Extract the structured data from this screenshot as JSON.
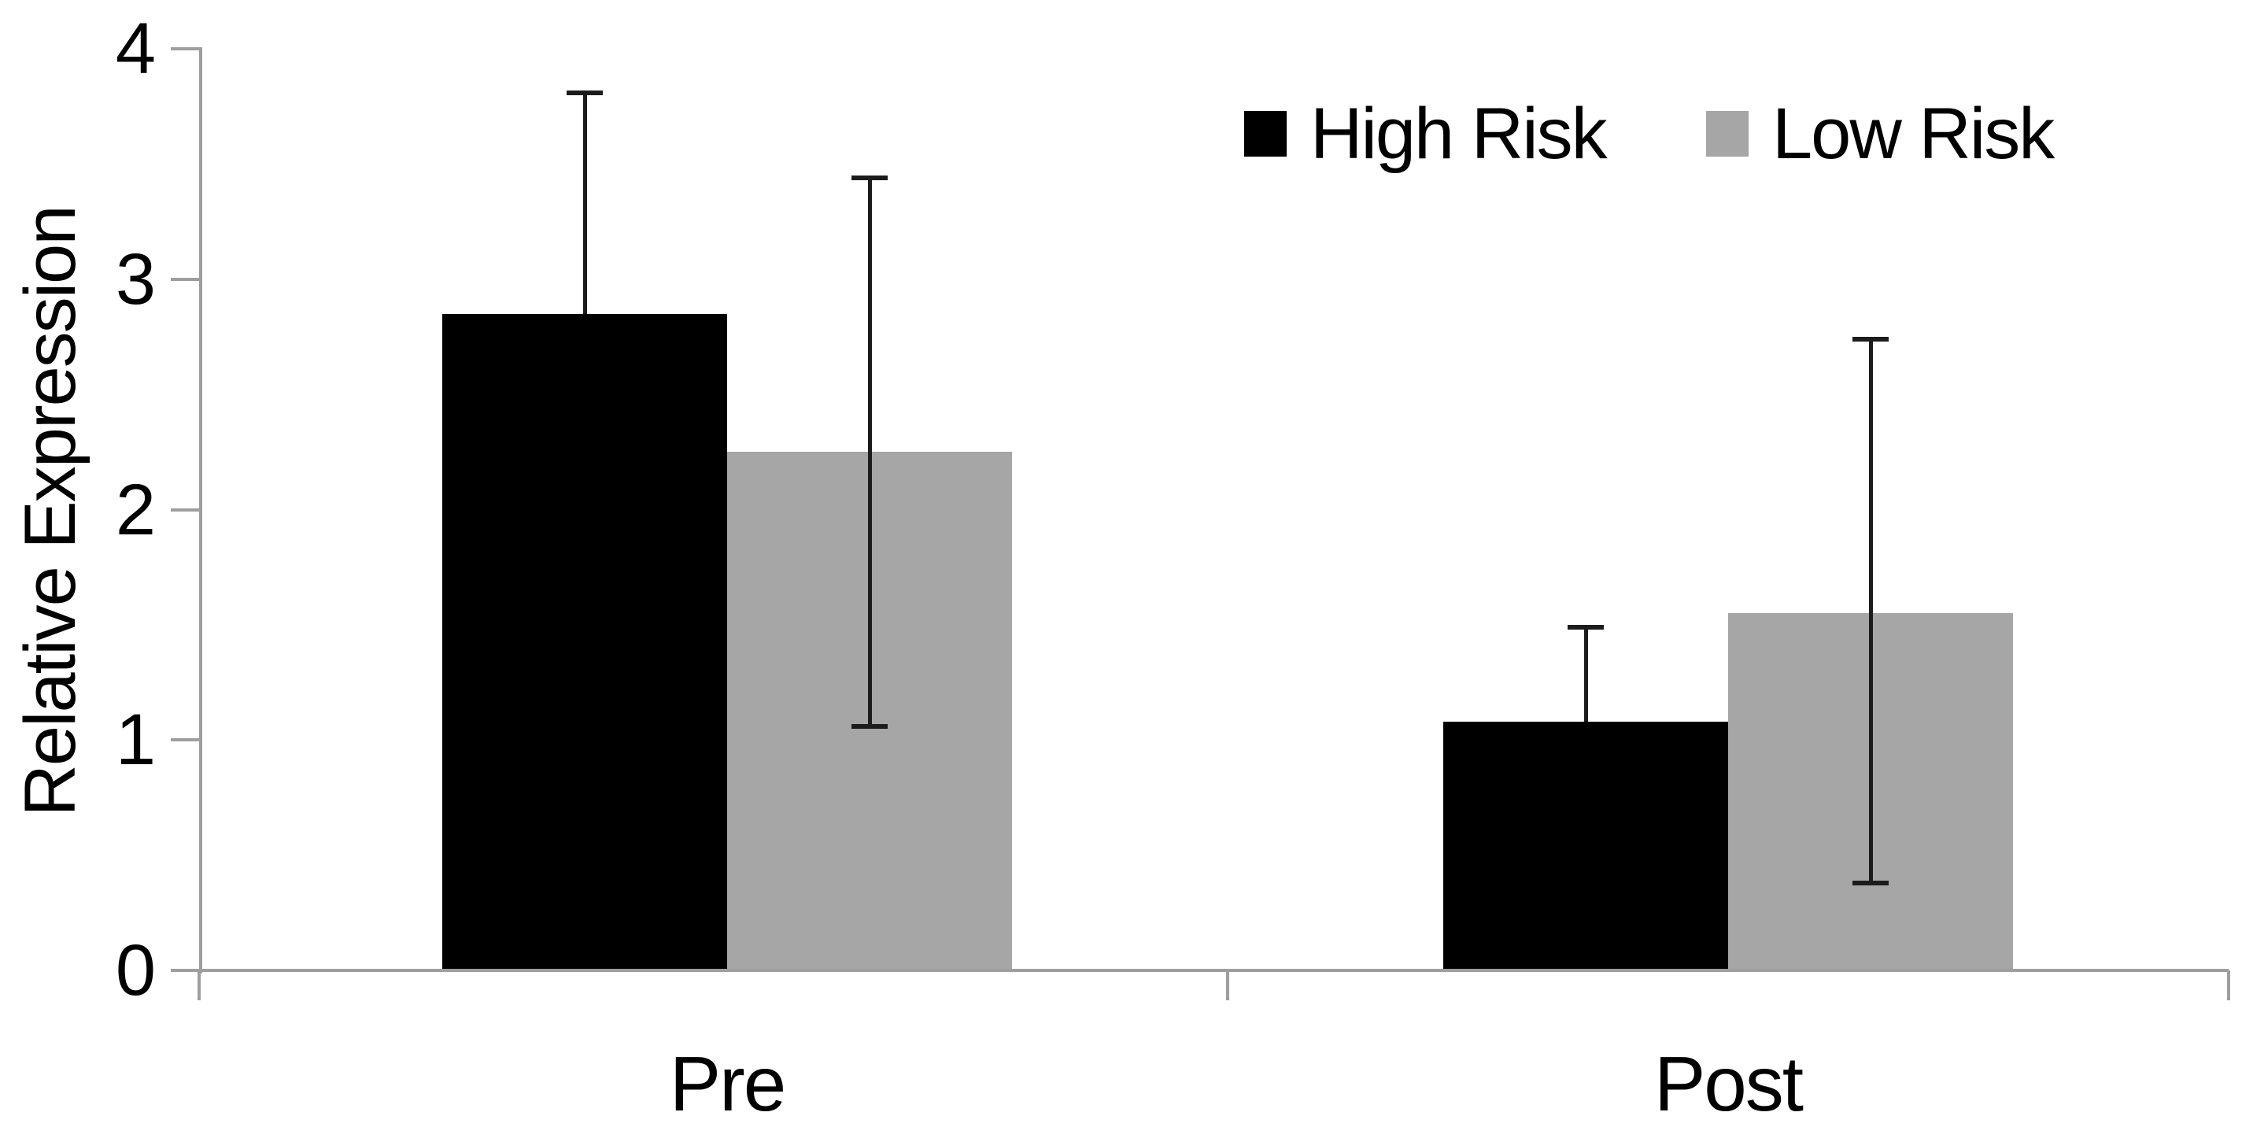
{
  "chart_data": {
    "type": "bar",
    "title": "",
    "categories": [
      "Pre",
      "Post"
    ],
    "series": [
      {
        "name": "High Risk",
        "color": "#000000",
        "values": [
          2.85,
          1.08
        ],
        "error_plus": [
          0.96,
          0.41
        ],
        "error_minus": [
          0,
          0
        ],
        "error_lower_hidden": true
      },
      {
        "name": "Low Risk",
        "color": "#a6a6a6",
        "values": [
          2.25,
          1.55
        ],
        "error_plus": [
          1.19,
          1.19
        ],
        "error_minus": [
          1.19,
          1.17
        ],
        "error_lower_hidden": false
      }
    ],
    "xlabel": "",
    "ylabel": "Relative Expression",
    "ylim": [
      0,
      4
    ],
    "yticks": [
      "0",
      "1",
      "2",
      "3",
      "4"
    ],
    "grid": false,
    "legend_position": "top-right",
    "colors": {
      "axis_line": "#9e9e9e",
      "error_bar": "#1c1c1c",
      "text": "#000000",
      "background": "#ffffff"
    }
  }
}
